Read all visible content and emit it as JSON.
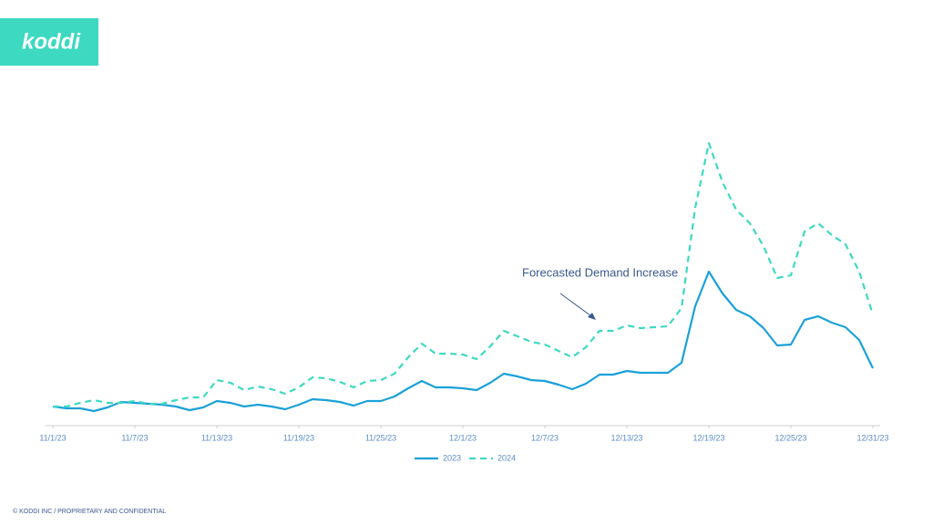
{
  "logo": "koddi",
  "footer": "© KODDI INC / PROPRIETARY AND CONFIDENTIAL",
  "chart_data": {
    "type": "line",
    "annotation": "Forecasted Demand Increase",
    "categories": [
      "11/1/23",
      null,
      null,
      null,
      null,
      null,
      "11/7/23",
      null,
      null,
      null,
      null,
      null,
      "11/13/23",
      null,
      null,
      null,
      null,
      null,
      "11/19/23",
      null,
      null,
      null,
      null,
      null,
      "11/25/23",
      null,
      null,
      null,
      null,
      null,
      "12/1/23",
      null,
      null,
      null,
      null,
      null,
      "12/7/23",
      null,
      null,
      null,
      null,
      null,
      "12/13/23",
      null,
      null,
      null,
      null,
      null,
      "12/19/23",
      null,
      null,
      null,
      null,
      null,
      "12/25/23",
      null,
      null,
      null,
      null,
      null,
      "12/31/23"
    ],
    "series": [
      {
        "name": "2023",
        "color": "#1ba1d8",
        "dash": false,
        "values": [
          21,
          19,
          19,
          16,
          20,
          26,
          25,
          24,
          23,
          21,
          17,
          20,
          27,
          25,
          21,
          23,
          21,
          18,
          23,
          29,
          28,
          26,
          22,
          27,
          27,
          32,
          41,
          49,
          42,
          42,
          41,
          39,
          47,
          57,
          54,
          50,
          49,
          45,
          40,
          46,
          56,
          56,
          60,
          58,
          58,
          58,
          69,
          131,
          169,
          145,
          127,
          120,
          107,
          88,
          89,
          116,
          120,
          113,
          108,
          94,
          63
        ]
      },
      {
        "name": "2024",
        "color": "#3dd9c1",
        "dash": true,
        "values": [
          21,
          21,
          25,
          28,
          25,
          25,
          27,
          24,
          24,
          28,
          31,
          31,
          50,
          47,
          39,
          43,
          40,
          35,
          42,
          53,
          52,
          48,
          42,
          49,
          50,
          57,
          75,
          90,
          79,
          79,
          78,
          73,
          87,
          104,
          98,
          92,
          89,
          82,
          75,
          86,
          104,
          104,
          110,
          107,
          108,
          109,
          129,
          239,
          310,
          267,
          237,
          222,
          197,
          162,
          165,
          213,
          222,
          209,
          199,
          169,
          122
        ]
      }
    ],
    "ylim": [
      0,
      320
    ],
    "legend": "bottom"
  }
}
